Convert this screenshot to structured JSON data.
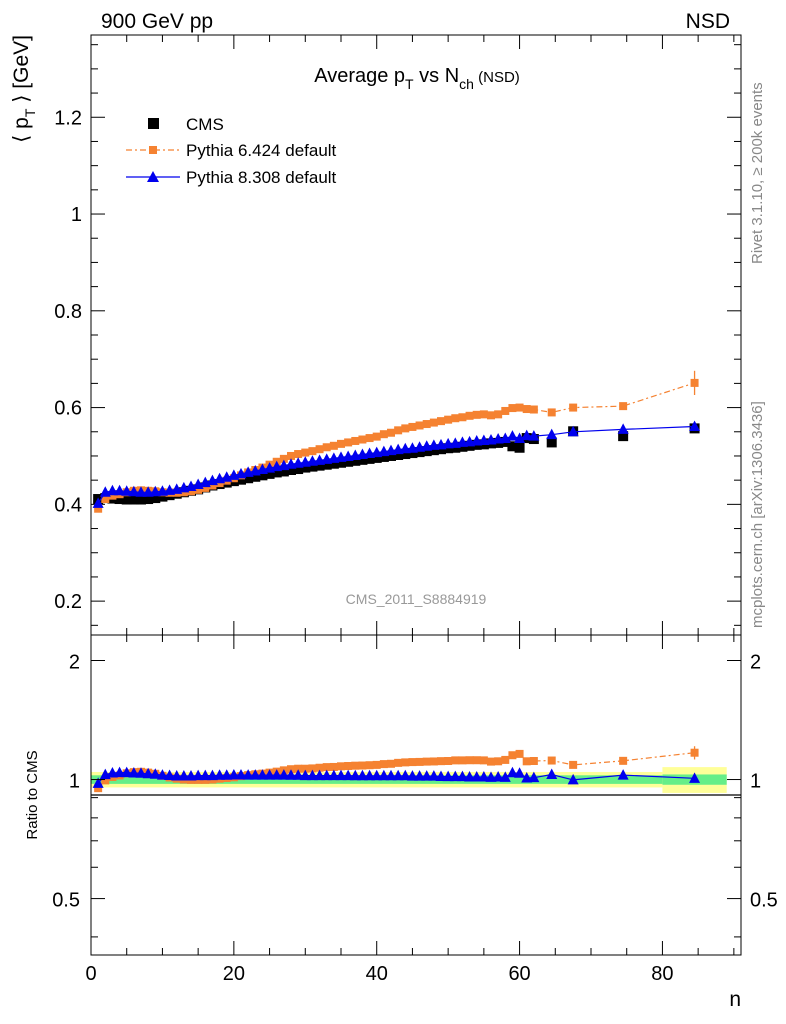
{
  "header": {
    "left": "900 GeV pp",
    "right": "NSD"
  },
  "side_labels": {
    "rivet": "Rivet 3.1.10, ≥ 200k events",
    "mcplots": "mcplots.cern.ch [arXiv:1306.3436]"
  },
  "colors": {
    "cms": "#000000",
    "pythia6": "#f58231",
    "pythia8": "#0000ee",
    "band_yellow": "#ffff99",
    "band_green": "#66ee88"
  },
  "chart_data": [
    {
      "type": "scatter",
      "title_main": "Average p",
      "title_sub1": "T",
      "title_mid": " vs N",
      "title_sub2": "ch",
      "title_tag": " (NSD)",
      "ylabel_pre": "⟨ p",
      "ylabel_sub": "T",
      "ylabel_post": " ⟩ [GeV]",
      "watermark": "CMS_2011_S8884919",
      "xlim": [
        0,
        91
      ],
      "ylim": [
        0.13,
        1.37
      ],
      "yticks": [
        0.2,
        0.4,
        0.6,
        0.8,
        1,
        1.2
      ],
      "ytick_labels": [
        "0.2",
        "0.4",
        "0.6",
        "0.8",
        "1",
        "1.2"
      ],
      "legend": [
        "CMS",
        "Pythia 6.424 default",
        "Pythia 8.308 default"
      ],
      "legend_position": "top-left",
      "series": [
        {
          "name": "CMS",
          "marker": "square",
          "x": [
            1,
            2,
            3,
            4,
            5,
            6,
            7,
            8,
            9,
            10,
            11,
            12,
            13,
            14,
            15,
            16,
            17,
            18,
            19,
            20,
            21,
            22,
            23,
            24,
            25,
            26,
            27,
            28,
            29,
            30,
            31,
            32,
            33,
            34,
            35,
            36,
            37,
            38,
            39,
            40,
            41,
            42,
            43,
            44,
            45,
            46,
            47,
            48,
            49,
            50,
            51,
            52,
            53,
            54,
            55,
            56,
            57,
            58,
            59,
            60,
            61,
            62,
            64.5,
            67.5,
            74.5,
            84.5
          ],
          "y": [
            0.411,
            0.413,
            0.412,
            0.411,
            0.41,
            0.41,
            0.41,
            0.411,
            0.413,
            0.416,
            0.419,
            0.422,
            0.425,
            0.428,
            0.431,
            0.435,
            0.439,
            0.442,
            0.445,
            0.448,
            0.451,
            0.454,
            0.457,
            0.46,
            0.463,
            0.466,
            0.468,
            0.471,
            0.473,
            0.476,
            0.478,
            0.48,
            0.482,
            0.484,
            0.486,
            0.488,
            0.49,
            0.492,
            0.494,
            0.496,
            0.498,
            0.5,
            0.502,
            0.504,
            0.506,
            0.508,
            0.51,
            0.512,
            0.514,
            0.516,
            0.517,
            0.519,
            0.521,
            0.523,
            0.524,
            0.526,
            0.527,
            0.529,
            0.52,
            0.517,
            0.537,
            0.535,
            0.528,
            0.551,
            0.541,
            0.557
          ]
        },
        {
          "name": "Pythia 6.424 default",
          "marker": "small-square",
          "x": [
            1,
            2,
            3,
            4,
            5,
            6,
            7,
            8,
            9,
            10,
            11,
            12,
            13,
            14,
            15,
            16,
            17,
            18,
            19,
            20,
            21,
            22,
            23,
            24,
            25,
            26,
            27,
            28,
            29,
            30,
            31,
            32,
            33,
            34,
            35,
            36,
            37,
            38,
            39,
            40,
            41,
            42,
            43,
            44,
            45,
            46,
            47,
            48,
            49,
            50,
            51,
            52,
            53,
            54,
            55,
            56,
            57,
            58,
            59,
            60,
            61,
            62,
            64.5,
            67.5,
            74.5,
            84.5
          ],
          "y": [
            0.391,
            0.411,
            0.418,
            0.421,
            0.425,
            0.428,
            0.429,
            0.428,
            0.427,
            0.425,
            0.424,
            0.424,
            0.425,
            0.427,
            0.43,
            0.434,
            0.439,
            0.444,
            0.449,
            0.454,
            0.46,
            0.466,
            0.471,
            0.476,
            0.482,
            0.488,
            0.494,
            0.5,
            0.504,
            0.507,
            0.51,
            0.514,
            0.518,
            0.521,
            0.525,
            0.528,
            0.531,
            0.534,
            0.537,
            0.54,
            0.545,
            0.548,
            0.553,
            0.557,
            0.56,
            0.563,
            0.566,
            0.569,
            0.572,
            0.575,
            0.578,
            0.58,
            0.583,
            0.585,
            0.586,
            0.584,
            0.586,
            0.593,
            0.599,
            0.6,
            0.597,
            0.596,
            0.59,
            0.6,
            0.603,
            0.651
          ],
          "yerr": [
            0,
            0,
            0,
            0,
            0,
            0,
            0,
            0,
            0,
            0,
            0,
            0,
            0,
            0,
            0,
            0,
            0,
            0,
            0,
            0,
            0,
            0,
            0,
            0,
            0,
            0,
            0,
            0,
            0,
            0,
            0,
            0,
            0,
            0,
            0,
            0,
            0,
            0,
            0,
            0,
            0,
            0,
            0,
            0,
            0,
            0,
            0,
            0,
            0,
            0,
            0,
            0,
            0,
            0,
            0,
            0,
            0,
            0,
            0,
            0,
            0,
            0,
            0,
            0,
            0,
            0.025
          ]
        },
        {
          "name": "Pythia 8.308 default",
          "marker": "triangle",
          "x": [
            1,
            2,
            3,
            4,
            5,
            6,
            7,
            8,
            9,
            10,
            11,
            12,
            13,
            14,
            15,
            16,
            17,
            18,
            19,
            20,
            21,
            22,
            23,
            24,
            25,
            26,
            27,
            28,
            29,
            30,
            31,
            32,
            33,
            34,
            35,
            36,
            37,
            38,
            39,
            40,
            41,
            42,
            43,
            44,
            45,
            46,
            47,
            48,
            49,
            50,
            51,
            52,
            53,
            54,
            55,
            56,
            57,
            58,
            59,
            60,
            61,
            62,
            64.5,
            67.5,
            74.5,
            84.5
          ],
          "y": [
            0.402,
            0.425,
            0.428,
            0.428,
            0.427,
            0.426,
            0.425,
            0.425,
            0.426,
            0.427,
            0.429,
            0.431,
            0.434,
            0.437,
            0.441,
            0.445,
            0.449,
            0.453,
            0.456,
            0.46,
            0.463,
            0.466,
            0.469,
            0.472,
            0.475,
            0.478,
            0.48,
            0.483,
            0.485,
            0.487,
            0.489,
            0.491,
            0.493,
            0.495,
            0.497,
            0.499,
            0.501,
            0.503,
            0.505,
            0.507,
            0.509,
            0.511,
            0.513,
            0.515,
            0.516,
            0.518,
            0.52,
            0.522,
            0.523,
            0.525,
            0.526,
            0.528,
            0.529,
            0.531,
            0.532,
            0.533,
            0.535,
            0.536,
            0.541,
            0.536,
            0.542,
            0.541,
            0.544,
            0.55,
            0.555,
            0.561
          ]
        }
      ]
    },
    {
      "type": "scatter",
      "ylabel": "Ratio to CMS",
      "xlabel": "n",
      "xlim": [
        0,
        91
      ],
      "ylim": [
        0.36,
        2.32
      ],
      "yticks": [
        0.5,
        1,
        2
      ],
      "ytick_labels": [
        "0.5",
        "1",
        "2"
      ],
      "xticks": [
        0,
        20,
        40,
        60,
        80
      ],
      "xtick_labels": [
        "0",
        "20",
        "40",
        "60",
        "80"
      ],
      "uncertainty_bands": [
        {
          "x_from": 0,
          "x_to": 80,
          "yellow": [
            0.955,
            1.045
          ],
          "green": [
            0.975,
            1.025
          ]
        },
        {
          "x_from": 80,
          "x_to": 89,
          "yellow": [
            0.925,
            1.075
          ],
          "green": [
            0.97,
            1.03
          ]
        }
      ],
      "series": [
        {
          "name": "Pythia 6.424 default",
          "x": [
            1,
            2,
            3,
            4,
            5,
            6,
            7,
            8,
            9,
            10,
            11,
            12,
            13,
            14,
            15,
            16,
            17,
            18,
            19,
            20,
            21,
            22,
            23,
            24,
            25,
            26,
            27,
            28,
            29,
            30,
            31,
            32,
            33,
            34,
            35,
            36,
            37,
            38,
            39,
            40,
            41,
            42,
            43,
            44,
            45,
            46,
            47,
            48,
            49,
            50,
            51,
            52,
            53,
            54,
            55,
            56,
            57,
            58,
            59,
            60,
            61,
            62,
            64.5,
            67.5,
            74.5,
            84.5
          ],
          "y": [
            0.951,
            0.995,
            1.015,
            1.024,
            1.037,
            1.044,
            1.046,
            1.041,
            1.034,
            1.022,
            1.012,
            1.005,
            1.0,
            0.998,
            0.998,
            0.998,
            1.0,
            1.005,
            1.009,
            1.013,
            1.02,
            1.026,
            1.031,
            1.035,
            1.041,
            1.047,
            1.055,
            1.062,
            1.065,
            1.065,
            1.067,
            1.071,
            1.075,
            1.076,
            1.08,
            1.082,
            1.084,
            1.085,
            1.087,
            1.089,
            1.094,
            1.096,
            1.102,
            1.105,
            1.107,
            1.108,
            1.11,
            1.111,
            1.113,
            1.114,
            1.118,
            1.118,
            1.119,
            1.119,
            1.118,
            1.11,
            1.112,
            1.121,
            1.152,
            1.161,
            1.112,
            1.114,
            1.117,
            1.089,
            1.115,
            1.169
          ],
          "yerr": [
            0,
            0,
            0,
            0,
            0,
            0,
            0,
            0,
            0,
            0,
            0,
            0,
            0,
            0,
            0,
            0,
            0,
            0,
            0,
            0,
            0,
            0,
            0,
            0,
            0,
            0,
            0,
            0,
            0,
            0,
            0,
            0,
            0,
            0,
            0,
            0,
            0,
            0,
            0,
            0,
            0,
            0,
            0,
            0,
            0,
            0,
            0,
            0,
            0,
            0,
            0,
            0,
            0,
            0,
            0,
            0,
            0,
            0,
            0,
            0,
            0,
            0,
            0,
            0,
            0,
            0.045
          ]
        },
        {
          "name": "Pythia 8.308 default",
          "x": [
            1,
            2,
            3,
            4,
            5,
            6,
            7,
            8,
            9,
            10,
            11,
            12,
            13,
            14,
            15,
            16,
            17,
            18,
            19,
            20,
            21,
            22,
            23,
            24,
            25,
            26,
            27,
            28,
            29,
            30,
            31,
            32,
            33,
            34,
            35,
            36,
            37,
            38,
            39,
            40,
            41,
            42,
            43,
            44,
            45,
            46,
            47,
            48,
            49,
            50,
            51,
            52,
            53,
            54,
            55,
            56,
            57,
            58,
            59,
            60,
            61,
            62,
            64.5,
            67.5,
            74.5,
            84.5
          ],
          "y": [
            0.978,
            1.029,
            1.039,
            1.041,
            1.041,
            1.039,
            1.037,
            1.034,
            1.031,
            1.026,
            1.024,
            1.021,
            1.021,
            1.021,
            1.023,
            1.023,
            1.023,
            1.025,
            1.025,
            1.027,
            1.027,
            1.026,
            1.026,
            1.026,
            1.026,
            1.026,
            1.026,
            1.025,
            1.025,
            1.023,
            1.023,
            1.023,
            1.023,
            1.023,
            1.023,
            1.023,
            1.022,
            1.022,
            1.022,
            1.022,
            1.022,
            1.022,
            1.022,
            1.022,
            1.02,
            1.02,
            1.02,
            1.02,
            1.018,
            1.017,
            1.017,
            1.017,
            1.015,
            1.015,
            1.015,
            1.013,
            1.015,
            1.013,
            1.04,
            1.037,
            1.009,
            1.011,
            1.03,
            0.998,
            1.026,
            1.007
          ]
        }
      ]
    }
  ]
}
